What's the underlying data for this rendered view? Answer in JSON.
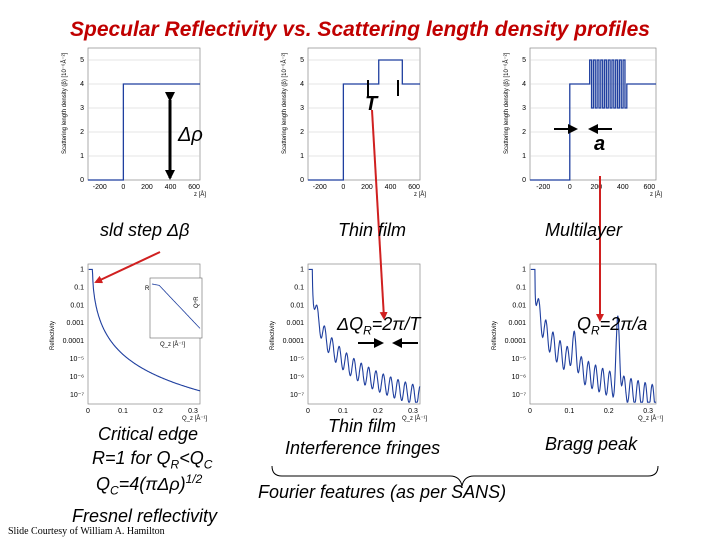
{
  "title": "Specular Reflectivity vs. Scattering length density profiles",
  "sld_panels": {
    "ylabel": "Scattering length density (β) [10⁻⁶Å⁻²]",
    "xlabel": "z [Å]",
    "x_ticks": [
      "-200",
      "0",
      "200",
      "400",
      "600"
    ],
    "y_ticks": [
      "0",
      "1",
      "2",
      "3",
      "4",
      "5"
    ]
  },
  "refl_panels": {
    "ylabel": "Reflectivity",
    "xlabel": "Q_z [Å⁻¹]",
    "x_ticks": [
      "0",
      "0.1",
      "0.2",
      "0.3"
    ],
    "y_ticks": [
      "1",
      "0.1",
      "0.01",
      "0.001",
      "0.0001",
      "10⁻⁵",
      "10⁻⁶",
      "10⁻⁷"
    ]
  },
  "inset": {
    "ylabel": "R",
    "ylabel2": "Q⁴R",
    "xlabel": "Q_z [Å⁻¹]"
  },
  "labels": {
    "delta_rho": "Δρ",
    "thickness": "T",
    "period": "a",
    "sld_step": "sld step Δβ",
    "thin_film": "Thin film",
    "multilayer": "Multilayer",
    "delta_q": "ΔQ",
    "delta_q_sub": "R",
    "delta_q_rest": "=2π/T",
    "qr_bragg": "Q",
    "qr_bragg_sub": "R",
    "qr_bragg_rest": "=2π/a",
    "critical_line1": "Critical edge",
    "critical_line2_pre": "R=1 for Q",
    "critical_line2_sub1": "R",
    "critical_line2_mid": "<Q",
    "critical_line2_sub2": "C",
    "critical_line3_pre": "Q",
    "critical_line3_sub": "C",
    "critical_line3_mid": "=4(πΔρ)",
    "critical_line3_sup": "1/2",
    "fresnel": "Fresnel reflectivity",
    "thin_film_2": "Thin film",
    "interference": "Interference fringes",
    "bragg_peak": "Bragg peak",
    "fourier": "Fourier features (as per SANS)",
    "credit": "Slide Courtesy of William A. Hamilton"
  },
  "colors": {
    "title": "#c00000",
    "curve": "#1f3f9f",
    "arrow": "#d02020"
  }
}
